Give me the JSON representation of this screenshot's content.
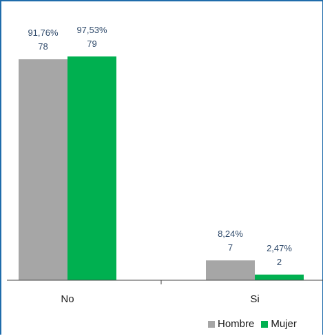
{
  "chart_data": {
    "type": "bar",
    "categories": [
      "No",
      "Si"
    ],
    "series": [
      {
        "name": "Hombre",
        "color": "#a6a6a6",
        "values": [
          78,
          7
        ],
        "labels_pct": [
          "91,76%",
          "8,24%"
        ],
        "labels_count": [
          "78",
          "7"
        ]
      },
      {
        "name": "Mujer",
        "color": "#00b050",
        "values": [
          79,
          2
        ],
        "labels_pct": [
          "97,53%",
          "2,47%"
        ],
        "labels_count": [
          "79",
          "2"
        ]
      }
    ],
    "title": "",
    "xlabel": "",
    "ylabel": "",
    "ylim": [
      0,
      85
    ],
    "legend_position": "bottom-right",
    "grid": false
  }
}
